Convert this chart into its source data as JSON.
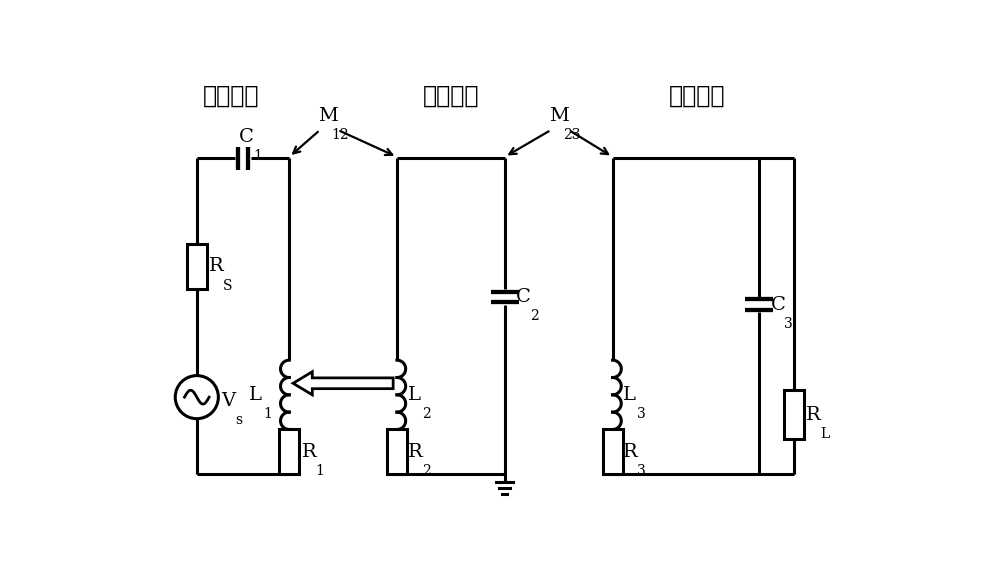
{
  "background_color": "#ffffff",
  "line_width": 2.2,
  "figsize": [
    10.0,
    5.76
  ],
  "labels": {
    "coil1": "发射线圈",
    "coil2": "中继线圈",
    "coil3": "接收线圈"
  }
}
